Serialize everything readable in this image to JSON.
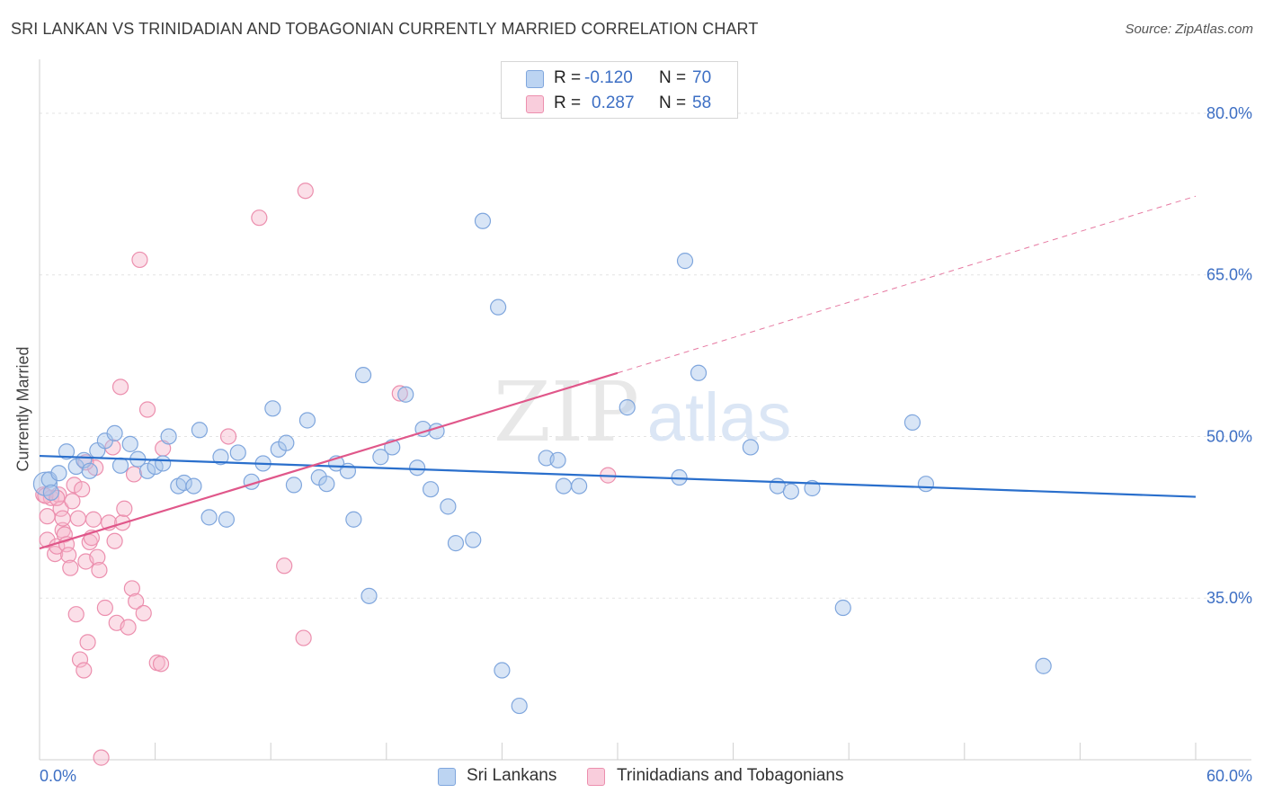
{
  "title": "SRI LANKAN VS TRINIDADIAN AND TOBAGONIAN CURRENTLY MARRIED CORRELATION CHART",
  "source": "Source: ZipAtlas.com",
  "watermark": {
    "zip": "ZIP",
    "atlas": "atlas"
  },
  "legend": {
    "series1": {
      "r_label": "R =",
      "r_value": "-0.120",
      "n_label": "N =",
      "n_value": "70"
    },
    "series2": {
      "r_label": "R =",
      "r_value": "0.287",
      "n_label": "N =",
      "n_value": "58"
    }
  },
  "bottom_legend": {
    "series1": "Sri Lankans",
    "series2": "Trinidadians and Tobagonians"
  },
  "colors": {
    "blue_fill": "#a8c6ec",
    "blue_stroke": "#7fa6dd",
    "blue_line": "#2a6fcc",
    "pink_fill": "#f6b9cd",
    "pink_stroke": "#ec8fae",
    "pink_line": "#e0578a",
    "grid": "#e3e3e3",
    "tick_text": "#3d6fc4"
  },
  "chart_data": {
    "type": "scatter",
    "title": "SRI LANKAN VS TRINIDADIAN AND TOBAGONIAN CURRENTLY MARRIED CORRELATION CHART",
    "xlabel": "",
    "ylabel": "Currently Married",
    "xlim": [
      0,
      60
    ],
    "ylim": [
      20,
      84
    ],
    "x_tick_labels": [
      "0.0%",
      "60.0%"
    ],
    "y_ticks": [
      35,
      50,
      65,
      80
    ],
    "y_tick_labels": [
      "35.0%",
      "50.0%",
      "65.0%",
      "80.0%"
    ],
    "grid": true,
    "series": [
      {
        "name": "Sri Lankans",
        "trend": {
          "x": [
            0,
            60
          ],
          "y": [
            48.2,
            44.4
          ]
        },
        "points": [
          [
            0.3,
            45.6
          ],
          [
            0.5,
            46.0
          ],
          [
            1.0,
            46.6
          ],
          [
            1.4,
            48.6
          ],
          [
            1.9,
            47.2
          ],
          [
            2.3,
            47.8
          ],
          [
            2.6,
            46.8
          ],
          [
            3.0,
            48.7
          ],
          [
            3.4,
            49.6
          ],
          [
            3.9,
            50.3
          ],
          [
            4.2,
            47.3
          ],
          [
            4.7,
            49.3
          ],
          [
            5.1,
            47.9
          ],
          [
            5.6,
            46.8
          ],
          [
            6.0,
            47.2
          ],
          [
            6.4,
            47.5
          ],
          [
            6.7,
            50.0
          ],
          [
            7.2,
            45.4
          ],
          [
            7.5,
            45.7
          ],
          [
            8.0,
            45.4
          ],
          [
            8.3,
            50.6
          ],
          [
            8.8,
            42.5
          ],
          [
            9.4,
            48.1
          ],
          [
            9.7,
            42.3
          ],
          [
            10.3,
            48.5
          ],
          [
            11.0,
            45.8
          ],
          [
            11.6,
            47.5
          ],
          [
            12.1,
            52.6
          ],
          [
            12.4,
            48.8
          ],
          [
            12.8,
            49.4
          ],
          [
            13.2,
            45.5
          ],
          [
            13.9,
            51.5
          ],
          [
            14.5,
            46.2
          ],
          [
            14.9,
            45.6
          ],
          [
            15.4,
            47.5
          ],
          [
            16.0,
            46.8
          ],
          [
            16.3,
            42.3
          ],
          [
            16.8,
            55.7
          ],
          [
            17.1,
            35.2
          ],
          [
            17.7,
            48.1
          ],
          [
            18.3,
            49.0
          ],
          [
            19.0,
            53.9
          ],
          [
            19.6,
            47.1
          ],
          [
            19.9,
            50.7
          ],
          [
            20.3,
            45.1
          ],
          [
            20.6,
            50.5
          ],
          [
            21.2,
            43.5
          ],
          [
            21.6,
            40.1
          ],
          [
            22.5,
            40.4
          ],
          [
            23.0,
            70.0
          ],
          [
            23.8,
            62.0
          ],
          [
            24.0,
            28.3
          ],
          [
            24.9,
            25.0
          ],
          [
            26.3,
            48.0
          ],
          [
            26.9,
            47.8
          ],
          [
            27.2,
            45.4
          ],
          [
            28.0,
            45.4
          ],
          [
            30.5,
            52.7
          ],
          [
            33.2,
            46.2
          ],
          [
            33.5,
            66.3
          ],
          [
            34.2,
            55.9
          ],
          [
            36.9,
            49.0
          ],
          [
            38.3,
            45.4
          ],
          [
            39.0,
            44.9
          ],
          [
            40.1,
            45.2
          ],
          [
            41.7,
            34.1
          ],
          [
            45.3,
            51.3
          ],
          [
            46.0,
            45.6
          ],
          [
            52.1,
            28.7
          ],
          [
            0.6,
            44.8
          ]
        ]
      },
      {
        "name": "Trinidadians and Tobagonians",
        "trend": {
          "x": [
            0,
            30
          ],
          "y": [
            39.6,
            55.9
          ]
        },
        "trend_ext": {
          "x": [
            30,
            60
          ],
          "y": [
            55.9,
            72.3
          ]
        },
        "points": [
          [
            0.2,
            44.6
          ],
          [
            0.4,
            42.6
          ],
          [
            0.4,
            40.4
          ],
          [
            0.6,
            44.3
          ],
          [
            0.8,
            39.1
          ],
          [
            0.9,
            39.8
          ],
          [
            1.0,
            44.6
          ],
          [
            1.1,
            43.3
          ],
          [
            1.2,
            41.3
          ],
          [
            1.3,
            40.9
          ],
          [
            1.4,
            40.0
          ],
          [
            1.5,
            39.0
          ],
          [
            1.6,
            37.8
          ],
          [
            1.7,
            44.0
          ],
          [
            1.8,
            45.5
          ],
          [
            1.9,
            33.5
          ],
          [
            2.0,
            42.4
          ],
          [
            2.1,
            29.3
          ],
          [
            2.2,
            45.1
          ],
          [
            2.3,
            28.3
          ],
          [
            2.4,
            38.4
          ],
          [
            2.5,
            30.9
          ],
          [
            2.6,
            40.2
          ],
          [
            2.7,
            40.6
          ],
          [
            2.8,
            42.3
          ],
          [
            2.9,
            47.1
          ],
          [
            3.0,
            38.8
          ],
          [
            3.1,
            37.6
          ],
          [
            3.2,
            20.2
          ],
          [
            3.4,
            34.1
          ],
          [
            3.6,
            42.0
          ],
          [
            3.8,
            49.0
          ],
          [
            3.9,
            40.3
          ],
          [
            4.0,
            32.7
          ],
          [
            4.2,
            54.6
          ],
          [
            4.3,
            42.0
          ],
          [
            4.4,
            43.3
          ],
          [
            4.6,
            32.3
          ],
          [
            4.8,
            35.9
          ],
          [
            5.0,
            34.7
          ],
          [
            5.2,
            66.4
          ],
          [
            5.4,
            33.6
          ],
          [
            5.6,
            52.5
          ],
          [
            6.1,
            29.0
          ],
          [
            6.3,
            28.9
          ],
          [
            6.4,
            48.9
          ],
          [
            9.8,
            50.0
          ],
          [
            11.4,
            70.3
          ],
          [
            12.7,
            38.0
          ],
          [
            13.7,
            31.3
          ],
          [
            13.8,
            72.8
          ],
          [
            18.7,
            54.0
          ],
          [
            29.5,
            46.4
          ],
          [
            0.3,
            44.5
          ],
          [
            0.9,
            44.3
          ],
          [
            2.4,
            47.6
          ],
          [
            4.9,
            46.5
          ],
          [
            1.2,
            42.4
          ]
        ]
      }
    ]
  }
}
